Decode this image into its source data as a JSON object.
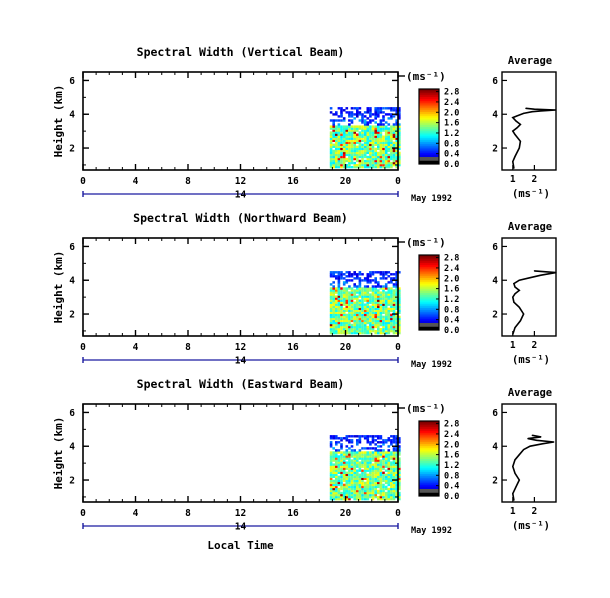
{
  "chart_data": [
    {
      "type": "heatmap",
      "title": "Spectral Width (Vertical Beam)",
      "ylabel": "Height (km)",
      "yticks": [
        "2",
        "4",
        "6"
      ],
      "ylim": [
        0.7,
        6.5
      ],
      "xticks": [
        "0",
        "4",
        "8",
        "12",
        "16",
        "20",
        "0"
      ],
      "xlim": [
        0,
        24
      ],
      "date_day": "14",
      "date_label": "May 1992",
      "unit_label": "(ms⁻¹)",
      "colorbar": {
        "ticks": [
          "0.0",
          "0.4",
          "0.8",
          "1.2",
          "1.6",
          "2.0",
          "2.4",
          "2.8"
        ],
        "range": [
          0.0,
          2.9
        ]
      },
      "data_extent": {
        "x": [
          18.8,
          24
        ],
        "y": [
          0.8,
          4.3
        ]
      },
      "average_profile": {
        "title": "Average",
        "xticks": [
          "1",
          "2"
        ],
        "xlabel": "(ms⁻¹)",
        "xlim": [
          0.5,
          3.0
        ],
        "yticks": [
          "2",
          "4",
          "6"
        ],
        "x": [
          1.05,
          1.0,
          1.1,
          1.3,
          1.35,
          1.1,
          1.0,
          1.2,
          1.35,
          1.15,
          1.0,
          1.2,
          1.5,
          1.9,
          2.3,
          3.0,
          2.0,
          1.6
        ],
        "y": [
          0.8,
          1.2,
          1.5,
          2.0,
          2.4,
          2.8,
          3.0,
          3.2,
          3.4,
          3.6,
          3.8,
          3.9,
          4.05,
          4.15,
          4.2,
          4.25,
          4.3,
          4.35
        ]
      }
    },
    {
      "type": "heatmap",
      "title": "Spectral Width (Northward Beam)",
      "ylabel": "Height (km)",
      "yticks": [
        "2",
        "4",
        "6"
      ],
      "ylim": [
        0.7,
        6.5
      ],
      "xticks": [
        "0",
        "4",
        "8",
        "12",
        "16",
        "20",
        "0"
      ],
      "xlim": [
        0,
        24
      ],
      "date_day": "14",
      "date_label": "May 1992",
      "unit_label": "(ms⁻¹)",
      "colorbar": {
        "ticks": [
          "0.0",
          "0.4",
          "0.8",
          "1.2",
          "1.6",
          "2.0",
          "2.4",
          "2.8"
        ],
        "range": [
          0.0,
          2.9
        ]
      },
      "data_extent": {
        "x": [
          18.8,
          24
        ],
        "y": [
          0.8,
          4.5
        ]
      },
      "average_profile": {
        "title": "Average",
        "xticks": [
          "1",
          "2"
        ],
        "xlabel": "(ms⁻¹)",
        "xlim": [
          0.5,
          3.0
        ],
        "yticks": [
          "2",
          "4",
          "6"
        ],
        "x": [
          1.0,
          1.1,
          1.35,
          1.5,
          1.3,
          1.05,
          1.0,
          1.1,
          1.3,
          1.1,
          1.05,
          1.3,
          1.8,
          2.3,
          3.0,
          2.0
        ],
        "y": [
          0.8,
          1.2,
          1.6,
          2.0,
          2.4,
          2.7,
          3.0,
          3.2,
          3.4,
          3.6,
          3.8,
          4.0,
          4.15,
          4.3,
          4.45,
          4.55
        ]
      }
    },
    {
      "type": "heatmap",
      "title": "Spectral Width (Eastward Beam)",
      "ylabel": "Height (km)",
      "yticks": [
        "2",
        "4",
        "6"
      ],
      "ylim": [
        0.7,
        6.5
      ],
      "xticks": [
        "0",
        "4",
        "8",
        "12",
        "16",
        "20",
        "0"
      ],
      "xlim": [
        0,
        24
      ],
      "xlabel": "Local Time",
      "date_day": "14",
      "date_label": "May 1992",
      "unit_label": "(ms⁻¹)",
      "colorbar": {
        "ticks": [
          "0.0",
          "0.4",
          "0.8",
          "1.2",
          "1.6",
          "2.0",
          "2.4",
          "2.8"
        ],
        "range": [
          0.0,
          2.9
        ]
      },
      "data_extent": {
        "x": [
          18.8,
          24
        ],
        "y": [
          0.8,
          4.6
        ]
      },
      "average_profile": {
        "title": "Average",
        "xticks": [
          "1",
          "2"
        ],
        "xlabel": "(ms⁻¹)",
        "xlim": [
          0.5,
          3.0
        ],
        "yticks": [
          "2",
          "4",
          "6"
        ],
        "x": [
          1.05,
          1.0,
          1.15,
          1.3,
          1.1,
          1.0,
          1.1,
          1.3,
          1.5,
          1.8,
          2.4,
          2.9,
          2.1,
          1.7,
          2.3,
          1.9
        ],
        "y": [
          0.8,
          1.2,
          1.6,
          2.0,
          2.4,
          2.8,
          3.2,
          3.5,
          3.8,
          4.0,
          4.15,
          4.25,
          4.35,
          4.45,
          4.55,
          4.65
        ]
      }
    }
  ]
}
